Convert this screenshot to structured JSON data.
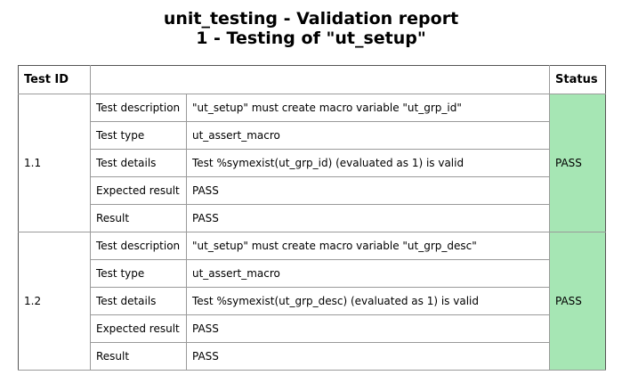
{
  "report": {
    "title_line1": "unit_testing - Validation report",
    "title_line2": "1 - Testing of \"ut_setup\""
  },
  "table": {
    "columns": [
      "Test ID",
      "",
      "",
      "Status"
    ],
    "groups": [
      {
        "id": "1.1",
        "status": "PASS",
        "rows": [
          {
            "label": "Test description",
            "value": "\"ut_setup\" must create macro variable \"ut_grp_id\""
          },
          {
            "label": "Test type",
            "value": "ut_assert_macro"
          },
          {
            "label": "Test details",
            "value": "Test %symexist(ut_grp_id) (evaluated as 1) is valid"
          },
          {
            "label": "Expected result",
            "value": "PASS"
          },
          {
            "label": "Result",
            "value": "PASS"
          }
        ]
      },
      {
        "id": "1.2",
        "status": "PASS",
        "rows": [
          {
            "label": "Test description",
            "value": "\"ut_setup\" must create macro variable \"ut_grp_desc\""
          },
          {
            "label": "Test type",
            "value": "ut_assert_macro"
          },
          {
            "label": "Test details",
            "value": "Test %symexist(ut_grp_desc) (evaluated as 1) is valid"
          },
          {
            "label": "Expected result",
            "value": "PASS"
          },
          {
            "label": "Result",
            "value": "PASS"
          }
        ]
      }
    ]
  },
  "colors": {
    "pass_background": "#a6e6b4",
    "border": "#9a9a9a"
  }
}
